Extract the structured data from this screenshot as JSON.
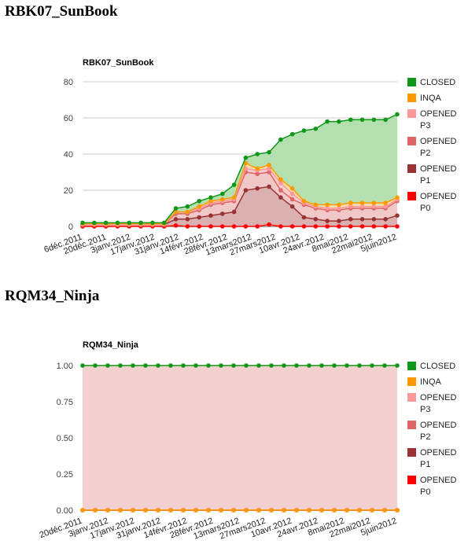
{
  "sections": [
    {
      "heading": "RBK07_SunBook"
    },
    {
      "heading": "RQM34_Ninja"
    }
  ],
  "chart_data": [
    {
      "type": "area",
      "title": "RBK07_SunBook",
      "xlabel": "",
      "ylabel": "",
      "ylim": [
        0,
        80
      ],
      "y_ticks": [
        "0",
        "20",
        "40",
        "60",
        "80"
      ],
      "grid": true,
      "legend": "right",
      "x_tick_labels": [
        "6déc.2011",
        "20déc.2011",
        "3janv.2012",
        "17janv.2012",
        "31janv.2012",
        "14févr.2012",
        "28févr.2012",
        "13mars2012",
        "27mars2012",
        "10avr.2012",
        "24avr.2012",
        "8mai2012",
        "22mai2012",
        "5juin2012"
      ],
      "series": [
        {
          "name": "CLOSED",
          "color": "#109618",
          "fill": "#b4e0b0",
          "values": [
            2,
            2,
            2,
            2,
            2,
            2,
            2,
            2,
            10,
            11,
            14,
            16,
            18,
            23,
            38,
            40,
            41,
            48,
            51,
            53,
            54,
            58,
            58,
            59,
            59,
            59,
            59,
            62
          ]
        },
        {
          "name": "INQA",
          "color": "#ff9900",
          "fill": "#fadcaa",
          "values": [
            1.5,
            1.5,
            1.5,
            1.5,
            1.5,
            1.5,
            1.5,
            1.5,
            8,
            8,
            11,
            14,
            15,
            16,
            35,
            32,
            34,
            26,
            21,
            14,
            12,
            12,
            12,
            13,
            13,
            13,
            13,
            16
          ]
        },
        {
          "name": "OPENED P3",
          "color": "#ff9999",
          "fill": "#f8cccc",
          "values": [
            1,
            1,
            1,
            1,
            1,
            1,
            1,
            1,
            8,
            8,
            10,
            13,
            14,
            15,
            32,
            31,
            32,
            24,
            18,
            13,
            11,
            10,
            10,
            11,
            11,
            11,
            11,
            15
          ]
        },
        {
          "name": "OPENED P2",
          "color": "#dd6666",
          "fill": "#f0c8c8",
          "values": [
            1,
            1,
            1,
            1,
            1,
            1,
            1,
            1,
            7,
            7,
            9,
            12,
            13,
            14,
            30,
            29,
            30,
            20,
            15,
            12,
            10,
            9,
            9,
            10,
            10,
            10,
            10,
            14
          ]
        },
        {
          "name": "OPENED P1",
          "color": "#993333",
          "fill": "#dbb0b0",
          "values": [
            1,
            1,
            1,
            1,
            1,
            1,
            1,
            1,
            4,
            4,
            5,
            6,
            7,
            8,
            20,
            21,
            22,
            16,
            11,
            5,
            4,
            3,
            3,
            4,
            4,
            4,
            4,
            6
          ]
        },
        {
          "name": "OPENED P0",
          "color": "#ff0000",
          "fill": "#f4b8b8",
          "values": [
            0,
            0,
            0,
            0,
            0,
            0,
            0,
            0,
            0.5,
            0,
            0,
            0,
            0,
            0,
            0,
            0,
            1,
            0,
            0,
            0,
            0,
            0,
            0,
            0,
            0,
            0,
            0,
            0
          ]
        }
      ]
    },
    {
      "type": "area",
      "title": "RQM34_Ninja",
      "xlabel": "",
      "ylabel": "",
      "ylim": [
        0,
        1
      ],
      "y_ticks": [
        "0.00",
        "0.25",
        "0.50",
        "0.75",
        "1.00"
      ],
      "grid": true,
      "legend": "right",
      "x_tick_labels": [
        "20déc.2011",
        "3janv.2012",
        "17janv.2012",
        "31janv.2012",
        "14févr.2012",
        "28févr.2012",
        "13mars2012",
        "27mars2012",
        "10avr.2012",
        "24avr.2012",
        "8mai2012",
        "22mai2012",
        "5juin2012"
      ],
      "series": [
        {
          "name": "CLOSED",
          "color": "#109618",
          "fill": "#f2d0d0",
          "values": [
            1,
            1,
            1,
            1,
            1,
            1,
            1,
            1,
            1,
            1,
            1,
            1,
            1,
            1,
            1,
            1,
            1,
            1,
            1,
            1,
            1,
            1,
            1,
            1,
            1,
            1
          ]
        },
        {
          "name": "INQA",
          "color": "#ff9900",
          "fill": "#fadcaa",
          "values": [
            0,
            0,
            0,
            0,
            0,
            0,
            0,
            0,
            0,
            0,
            0,
            0,
            0,
            0,
            0,
            0,
            0,
            0,
            0,
            0,
            0,
            0,
            0,
            0,
            0,
            0
          ]
        },
        {
          "name": "OPENED P3",
          "color": "#ff9999",
          "fill": "#f8cccc",
          "values": [
            0,
            0,
            0,
            0,
            0,
            0,
            0,
            0,
            0,
            0,
            0,
            0,
            0,
            0,
            0,
            0,
            0,
            0,
            0,
            0,
            0,
            0,
            0,
            0,
            0,
            0
          ]
        },
        {
          "name": "OPENED P2",
          "color": "#dd6666",
          "fill": "#f0c8c8",
          "values": [
            0,
            0,
            0,
            0,
            0,
            0,
            0,
            0,
            0,
            0,
            0,
            0,
            0,
            0,
            0,
            0,
            0,
            0,
            0,
            0,
            0,
            0,
            0,
            0,
            0,
            0
          ]
        },
        {
          "name": "OPENED P1",
          "color": "#993333",
          "fill": "#dbb0b0",
          "values": [
            0,
            0,
            0,
            0,
            0,
            0,
            0,
            0,
            0,
            0,
            0,
            0,
            0,
            0,
            0,
            0,
            0,
            0,
            0,
            0,
            0,
            0,
            0,
            0,
            0,
            0
          ]
        },
        {
          "name": "OPENED P0",
          "color": "#ff0000",
          "fill": "#f4b8b8",
          "values": [
            0,
            0,
            0,
            0,
            0,
            0,
            0,
            0,
            0,
            0,
            0,
            0,
            0,
            0,
            0,
            0,
            0,
            0,
            0,
            0,
            0,
            0,
            0,
            0,
            0,
            0
          ]
        }
      ]
    }
  ]
}
